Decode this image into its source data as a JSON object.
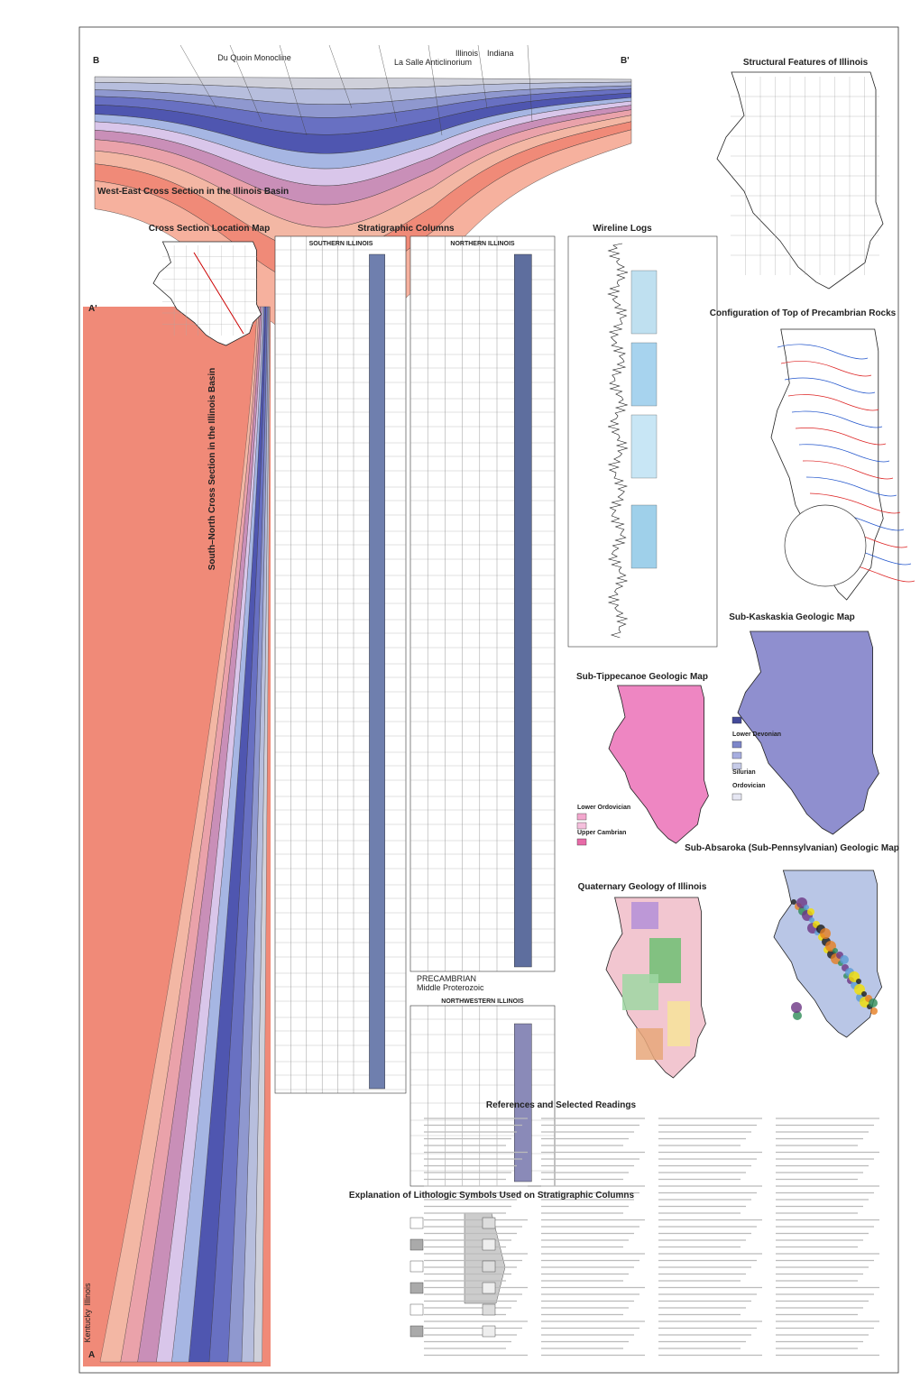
{
  "cross_section_we": {
    "title": "West-East Cross Section in the Illinois Basin",
    "labels": [
      "B",
      "B'",
      "Du Quoin Monocline",
      "La Salle Anticlinorium",
      "Illinois",
      "Indiana"
    ]
  },
  "structural_features": {
    "title": "Structural Features of Illinois"
  },
  "location_map": {
    "title": "Cross Section Location Map"
  },
  "cross_section_sn": {
    "title": "South–North Cross Section in the Illinois Basin",
    "labels": [
      "A",
      "A'",
      "Illinois",
      "Kentucky"
    ]
  },
  "stratigraphic_columns": {
    "title": "Stratigraphic Columns",
    "columns": [
      "SOUTHERN ILLINOIS",
      "NORTHERN ILLINOIS",
      "NORTHWESTERN ILLINOIS"
    ],
    "precambrian": [
      "PRECAMBRIAN",
      "Middle Proterozoic"
    ]
  },
  "wireline_logs": {
    "title": "Wireline Logs"
  },
  "precambrian_map": {
    "title": "Configuration of Top of Precambrian Rocks"
  },
  "sub_kaskaskia": {
    "title": "Sub-Kaskaskia Geologic Map",
    "legend": [
      "Lower Devonian",
      "Silurian",
      "Ordovician"
    ]
  },
  "sub_tippecanoe": {
    "title": "Sub-Tippecanoe Geologic Map",
    "legend": [
      "Lower Ordovician",
      "Upper Cambrian"
    ]
  },
  "sub_absaroka": {
    "title": "Sub-Absaroka (Sub-Pennsylvanian) Geologic Map"
  },
  "quaternary": {
    "title": "Quaternary Geology of Illinois"
  },
  "references": {
    "title": "References and Selected Readings"
  },
  "lithologic": {
    "title": "Explanation of Lithologic Symbols Used on Stratigraphic Columns"
  }
}
